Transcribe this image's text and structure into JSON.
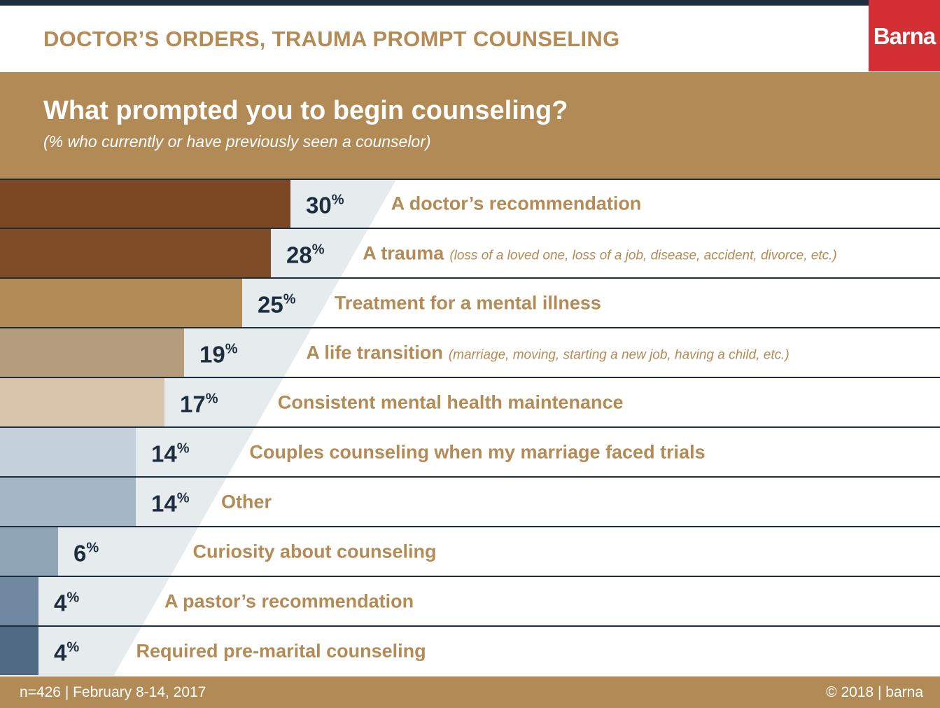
{
  "header": {
    "title": "DOCTOR’S ORDERS, TRAUMA PROMPT COUNSELING",
    "logo_text": "Barna"
  },
  "question": {
    "title": "What prompted you to begin counseling?",
    "subtitle": "(% who currently or have previously seen a counselor)"
  },
  "footer": {
    "left": "n=426 | February 8-14, 2017",
    "right": "© 2018 | barna"
  },
  "colors": {
    "brand": "#b28a56",
    "label": "#b48a55",
    "value_text": "#1e2d3d",
    "panel": "#e6ebee",
    "logo_bg": "#d22e33",
    "divider": "#1e2d3d"
  },
  "chart_data": {
    "type": "bar",
    "orientation": "horizontal",
    "xlim": [
      0,
      100
    ],
    "unit": "%",
    "categories": [
      {
        "label": "A doctor’s recommendation",
        "note": "",
        "value": 30,
        "color": "#7b4823"
      },
      {
        "label": "A trauma",
        "note": "(loss of a loved one, loss of a job, disease, accident, divorce, etc.)",
        "value": 28,
        "color": "#7e4c26"
      },
      {
        "label": "Treatment for a mental illness",
        "note": "",
        "value": 25,
        "color": "#b28a56"
      },
      {
        "label": "A life transition",
        "note": "(marriage, moving, starting a new job, having a child, etc.)",
        "value": 19,
        "color": "#b59c7d"
      },
      {
        "label": "Consistent mental health maintenance",
        "note": "",
        "value": 17,
        "color": "#d8c4aa"
      },
      {
        "label": "Couples counseling when my marriage faced trials",
        "note": "",
        "value": 14,
        "color": "#c5d1da"
      },
      {
        "label": "Other",
        "note": "",
        "value": 14,
        "color": "#a5b7c4"
      },
      {
        "label": "Curiosity about counseling",
        "note": "",
        "value": 6,
        "color": "#90a5b6"
      },
      {
        "label": "A pastor’s recommendation",
        "note": "",
        "value": 4,
        "color": "#7088a0"
      },
      {
        "label": "Required pre-marital counseling",
        "note": "",
        "value": 4,
        "color": "#4f6884"
      }
    ]
  }
}
